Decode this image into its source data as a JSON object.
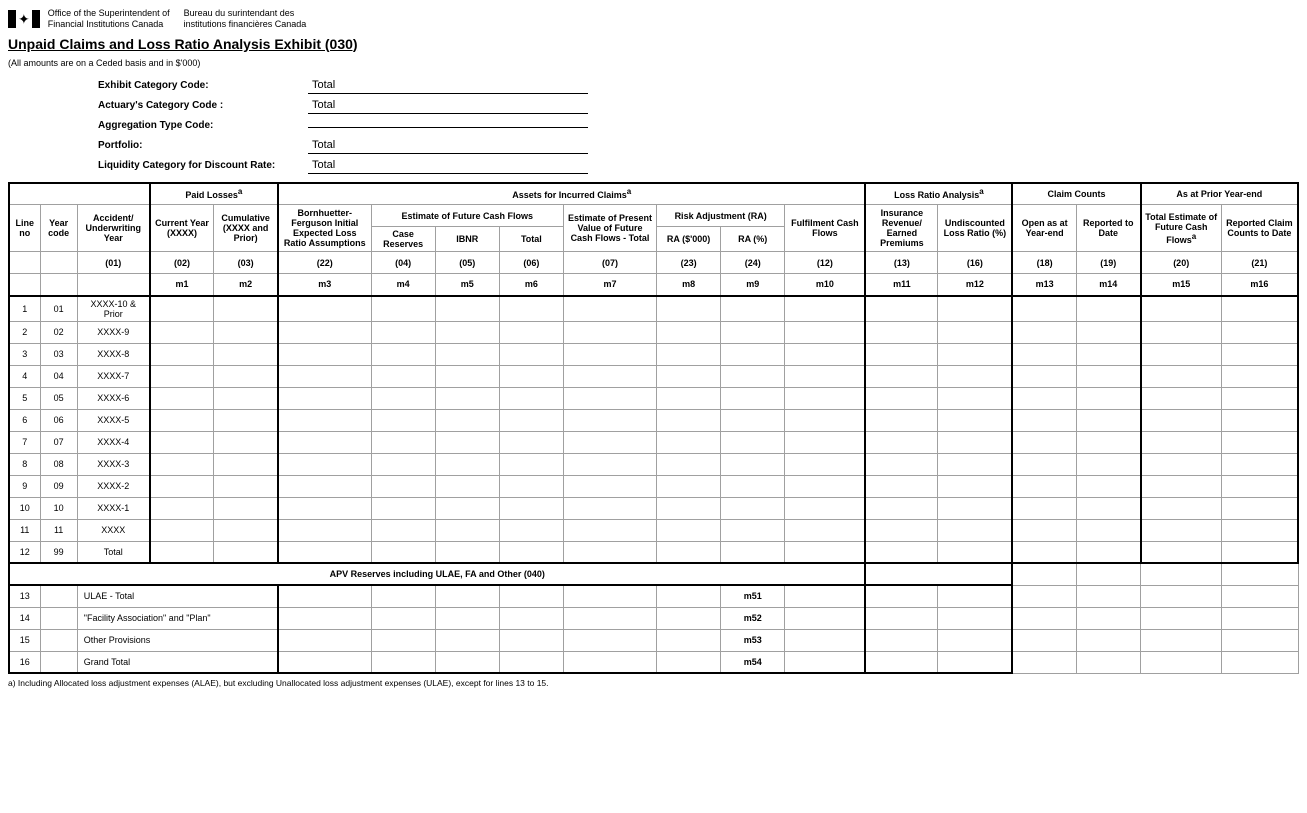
{
  "header": {
    "org_en_line1": "Office of the Superintendent of",
    "org_en_line2": "Financial Institutions Canada",
    "org_fr_line1": "Bureau du surintendant des",
    "org_fr_line2": "institutions financières Canada",
    "title": "Unpaid Claims and Loss Ratio Analysis Exhibit (030)",
    "subtitle": "(All amounts are on a Ceded basis and in $'000)"
  },
  "meta": {
    "rows": [
      {
        "label": "Exhibit Category Code:",
        "value": "Total"
      },
      {
        "label": "Actuary's Category Code :",
        "value": "Total"
      },
      {
        "label": "Aggregation Type Code:",
        "value": ""
      },
      {
        "label": "Portfolio:",
        "value": "Total"
      },
      {
        "label": "Liquidity Category for Discount Rate:",
        "value": "Total"
      }
    ]
  },
  "sections": {
    "paid_losses": "Paid Losses",
    "assets_incurred": "Assets for Incurred Claims",
    "loss_ratio": "Loss Ratio Analysis",
    "claim_counts": "Claim Counts",
    "prior_year": "As at Prior Year-end",
    "estimate_future": "Estimate of Future Cash Flows",
    "risk_adj": "Risk Adjustment (RA)"
  },
  "cols": {
    "line_no": "Line no",
    "year_code": "Year code",
    "acc_year": "Accident/ Underwriting Year",
    "current_year": "Current Year (XXXX)",
    "cumulative": "Cumulative (XXXX and Prior)",
    "bf": "Bornhuetter-Ferguson Initial Expected Loss Ratio Assumptions",
    "case_res": "Case Reserves",
    "ibnr": "IBNR",
    "total": "Total",
    "pv_total": "Estimate of Present Value of Future Cash Flows - Total",
    "ra_000": "RA ($'000)",
    "ra_pct": "RA (%)",
    "fulfilment": "Fulfilment Cash Flows",
    "ins_rev": "Insurance Revenue/ Earned Premiums",
    "undisc": "Undiscounted Loss Ratio (%)",
    "open_ye": "Open as at Year-end",
    "reported": "Reported to Date",
    "tot_est": "Total Estimate of Future Cash Flows",
    "rep_counts": "Reported Claim Counts to Date"
  },
  "codes": {
    "c01": "(01)",
    "c02": "(02)",
    "c03": "(03)",
    "c22": "(22)",
    "c04": "(04)",
    "c05": "(05)",
    "c06": "(06)",
    "c07": "(07)",
    "c23": "(23)",
    "c24": "(24)",
    "c12": "(12)",
    "c13": "(13)",
    "c16": "(16)",
    "c18": "(18)",
    "c19": "(19)",
    "c20": "(20)",
    "c21": "(21)"
  },
  "mcodes": {
    "m1": "m1",
    "m2": "m2",
    "m3": "m3",
    "m4": "m4",
    "m5": "m5",
    "m6": "m6",
    "m7": "m7",
    "m8": "m8",
    "m9": "m9",
    "m10": "m10",
    "m11": "m11",
    "m12": "m12",
    "m13": "m13",
    "m14": "m14",
    "m15": "m15",
    "m16": "m16",
    "m51": "m51",
    "m52": "m52",
    "m53": "m53",
    "m54": "m54"
  },
  "rows": [
    {
      "n": "1",
      "yc": "01",
      "acc": "XXXX-10 & Prior"
    },
    {
      "n": "2",
      "yc": "02",
      "acc": "XXXX-9"
    },
    {
      "n": "3",
      "yc": "03",
      "acc": "XXXX-8"
    },
    {
      "n": "4",
      "yc": "04",
      "acc": "XXXX-7"
    },
    {
      "n": "5",
      "yc": "05",
      "acc": "XXXX-6"
    },
    {
      "n": "6",
      "yc": "06",
      "acc": "XXXX-5"
    },
    {
      "n": "7",
      "yc": "07",
      "acc": "XXXX-4"
    },
    {
      "n": "8",
      "yc": "08",
      "acc": "XXXX-3"
    },
    {
      "n": "9",
      "yc": "09",
      "acc": "XXXX-2"
    },
    {
      "n": "10",
      "yc": "10",
      "acc": "XXXX-1"
    },
    {
      "n": "11",
      "yc": "11",
      "acc": "XXXX"
    },
    {
      "n": "12",
      "yc": "99",
      "acc": "Total"
    }
  ],
  "section2": {
    "title": "APV Reserves including ULAE, FA and Other (040)",
    "rows": [
      {
        "n": "13",
        "label": "ULAE - Total",
        "m": "m51"
      },
      {
        "n": "14",
        "label": "\"Facility Association\" and \"Plan\"",
        "m": "m52"
      },
      {
        "n": "15",
        "label": "Other Provisions",
        "m": "m53"
      },
      {
        "n": "16",
        "label": "Grand Total",
        "m": "m54"
      }
    ]
  },
  "footnote": "a) Including Allocated loss adjustment expenses (ALAE), but excluding Unallocated loss adjustment expenses (ULAE), except for lines 13 to 15.",
  "sup_a": "a"
}
